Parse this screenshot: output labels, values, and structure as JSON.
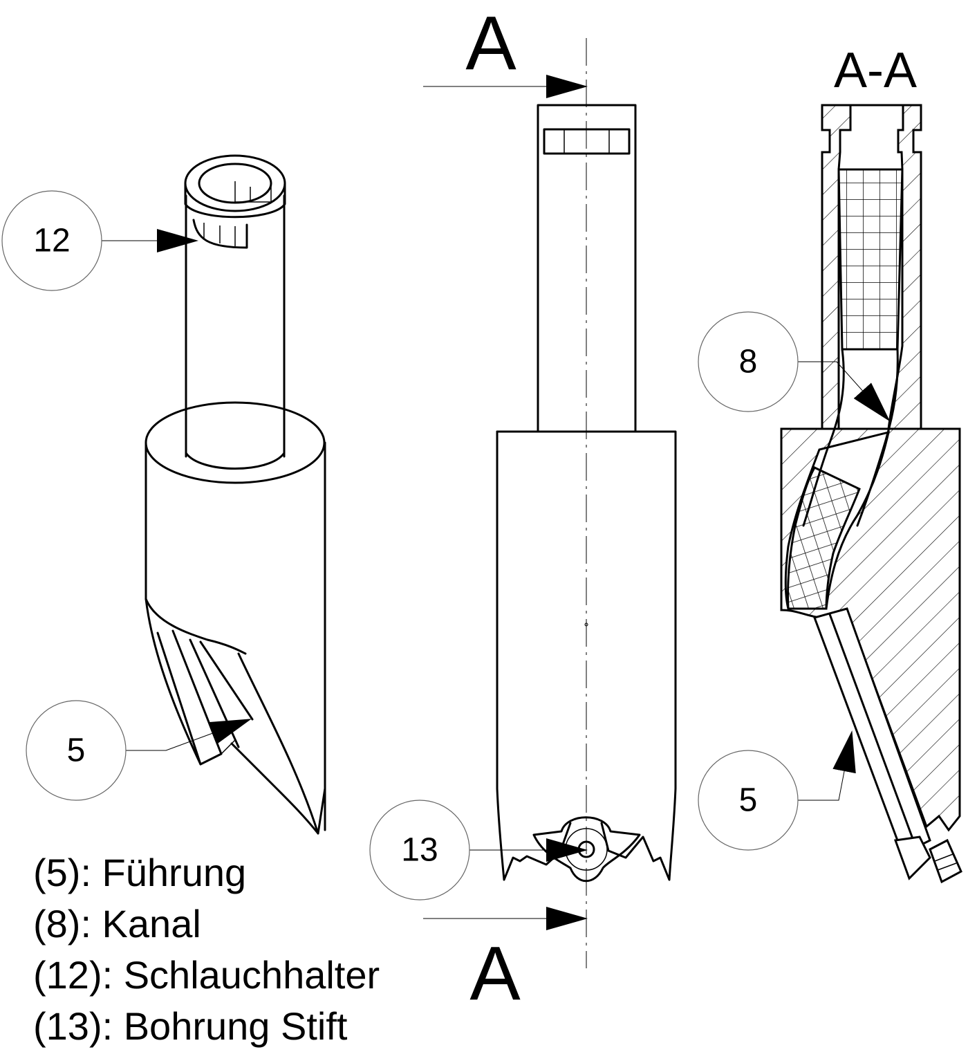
{
  "section_markers": {
    "top": "A",
    "bottom": "A"
  },
  "section_view_title": "A-A",
  "callouts": {
    "c12": "12",
    "c5_left": "5",
    "c13": "13",
    "c8": "8",
    "c5_right": "5"
  },
  "legend": [
    "(5): Führung",
    "(8): Kanal",
    "(12): Schlauchhalter",
    "(13): Bohrung Stift"
  ]
}
